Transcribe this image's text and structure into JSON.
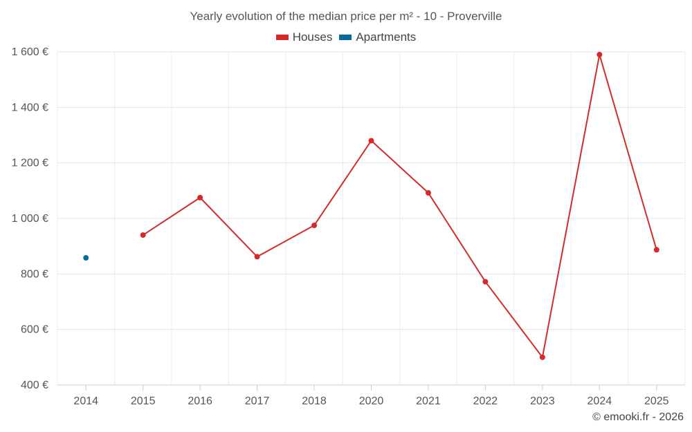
{
  "chart_data": {
    "type": "line",
    "title": "Yearly evolution of the median price per m² - 10 - Proverville",
    "categories": [
      "2014",
      "2015",
      "2016",
      "2017",
      "2018",
      "2020",
      "2021",
      "2022",
      "2023",
      "2024",
      "2025"
    ],
    "series": [
      {
        "name": "Houses",
        "color": "#d42a2a",
        "values": [
          null,
          940,
          1075,
          862,
          975,
          1280,
          1092,
          772,
          500,
          1590,
          887
        ]
      },
      {
        "name": "Apartments",
        "color": "#0a6a9e",
        "values": [
          858,
          null,
          null,
          null,
          null,
          null,
          null,
          null,
          null,
          null,
          null
        ]
      }
    ],
    "y_ticks": [
      400,
      600,
      800,
      1000,
      1200,
      1400,
      1600
    ],
    "y_tick_labels": [
      "400 €",
      "600 €",
      "800 €",
      "1 000 €",
      "1 200 €",
      "1 400 €",
      "1 600 €"
    ],
    "ylim": [
      400,
      1600
    ],
    "xlabel": "",
    "ylabel": "",
    "grid": true,
    "legend_position": "top-center"
  },
  "footer": {
    "credit": "© emooki.fr - 2026"
  }
}
